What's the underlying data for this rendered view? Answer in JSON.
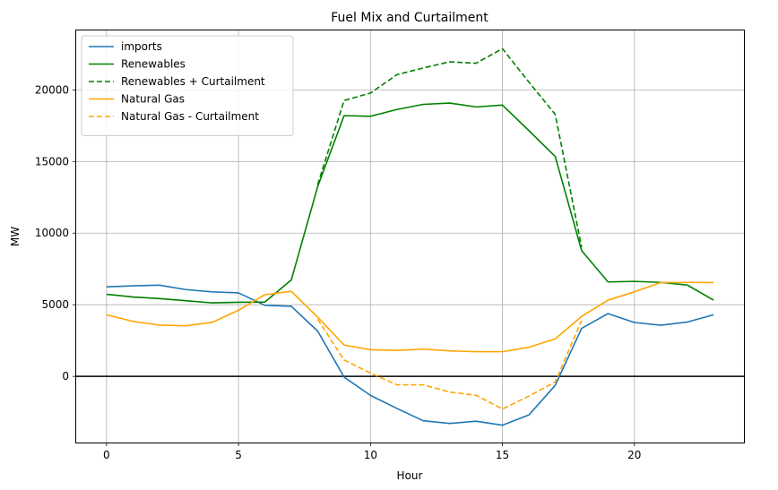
{
  "chart_data": {
    "type": "line",
    "title": "Fuel Mix and Curtailment",
    "xlabel": "Hour",
    "ylabel": "MW",
    "xlim": [
      -1.15,
      24.15
    ],
    "ylim": [
      -4620,
      24150
    ],
    "xticks": [
      0,
      5,
      10,
      15,
      20
    ],
    "yticks": [
      0,
      5000,
      10000,
      15000,
      20000
    ],
    "grid": true,
    "legend": "upper-left",
    "hline": {
      "y": 0,
      "color": "#000000"
    },
    "x": [
      0,
      1,
      2,
      3,
      4,
      5,
      6,
      7,
      8,
      9,
      10,
      11,
      12,
      13,
      14,
      15,
      16,
      17,
      18,
      19,
      20,
      21,
      22,
      23
    ],
    "series": [
      {
        "name": "imports",
        "color": "#1f77b4",
        "dash": "solid",
        "values": [
          6250,
          6320,
          6370,
          6060,
          5900,
          5830,
          4960,
          4890,
          3160,
          -50,
          -1330,
          -2240,
          -3100,
          -3290,
          -3130,
          -3410,
          -2700,
          -630,
          3350,
          4380,
          3760,
          3570,
          3790,
          4300
        ]
      },
      {
        "name": "Renewables",
        "color": "#008000",
        "dash": "solid",
        "values": [
          5730,
          5540,
          5430,
          5280,
          5130,
          5170,
          5190,
          6730,
          13250,
          18200,
          18160,
          18630,
          18990,
          19080,
          18810,
          18940,
          17160,
          15350,
          8780,
          6590,
          6630,
          6560,
          6380,
          5320
        ]
      },
      {
        "name": "Renewables + Curtailment",
        "color": "#008000",
        "dash": "dashed",
        "values": [
          null,
          null,
          null,
          null,
          null,
          null,
          null,
          null,
          13380,
          19260,
          19780,
          21060,
          21530,
          21960,
          21860,
          22880,
          20550,
          18290,
          9020,
          null,
          null,
          null,
          null,
          null
        ]
      },
      {
        "name": "Natural Gas",
        "color": "#ffa500",
        "dash": "solid",
        "values": [
          4300,
          3840,
          3580,
          3530,
          3770,
          4610,
          5700,
          5940,
          4130,
          2190,
          1860,
          1810,
          1900,
          1780,
          1720,
          1720,
          2030,
          2610,
          4190,
          5320,
          5900,
          6550,
          6560,
          6550
        ]
      },
      {
        "name": "Natural Gas - Curtailment",
        "color": "#ffa500",
        "dash": "dashed",
        "values": [
          null,
          null,
          null,
          null,
          null,
          null,
          null,
          null,
          3990,
          1140,
          230,
          -590,
          -590,
          -1100,
          -1320,
          -2280,
          -1380,
          -390,
          3900,
          null,
          null,
          null,
          null,
          null
        ]
      }
    ]
  }
}
